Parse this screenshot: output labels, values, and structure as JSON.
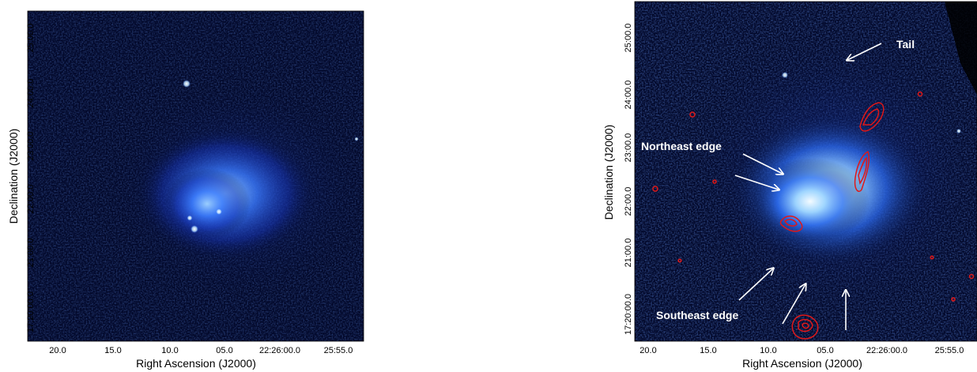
{
  "left_panel": {
    "xlabel": "Right Ascension (J2000)",
    "ylabel": "Declination (J2000)",
    "x_ticks": [
      "20.0",
      "15.0",
      "10.0",
      "05.0",
      "22:26:00.0",
      "25:55.0"
    ],
    "y_ticks": [
      "25:00.0",
      "24:00.0",
      "23:00.0",
      "22:00.0",
      "21:00.0",
      "17:20:00.0"
    ]
  },
  "right_panel": {
    "xlabel": "Right Ascension (J2000)",
    "ylabel": "Declination (J2000)",
    "x_ticks": [
      "20.0",
      "15.0",
      "10.0",
      "05.0",
      "22:26:00.0",
      "25:55.0"
    ],
    "y_ticks": [
      "25:00.0",
      "24:00.0",
      "23:00.0",
      "22:00.0",
      "21:00.0",
      "17:20:00.0"
    ],
    "annotations": {
      "tail": "Tail",
      "northeast": "Northeast edge",
      "southeast": "Southeast edge"
    }
  },
  "colors": {
    "background_dark": "#02082a",
    "emission_blue": "#2f6cff",
    "emission_bright": "#d8f0ff",
    "contours": "#e01818",
    "arrow": "#ffffff"
  }
}
